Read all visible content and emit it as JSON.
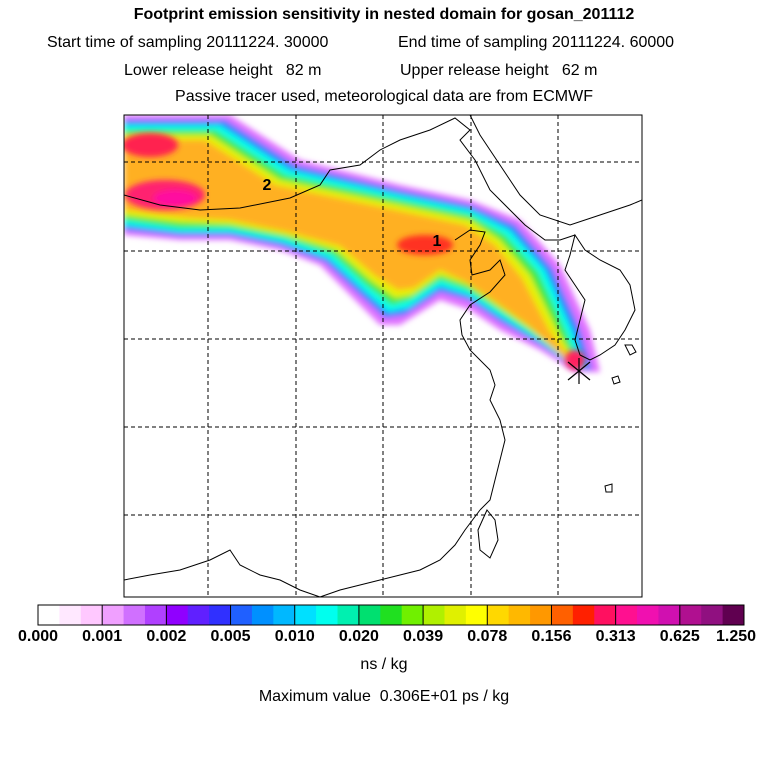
{
  "header": {
    "title": "Footprint emission sensitivity in nested domain for gosan_201112",
    "start_label": "Start time of sampling",
    "start_value": "20111224. 30000",
    "end_label": "End time of sampling",
    "end_value": "20111224. 60000",
    "lower_label": "Lower release height",
    "lower_value": "82 m",
    "upper_label": "Upper release height",
    "upper_value": "62 m",
    "tracer_note": "Passive tracer used, meteorological data are from ECMWF"
  },
  "map": {
    "markers": [
      {
        "label": "1"
      },
      {
        "label": "2"
      }
    ],
    "release_site": "gosan"
  },
  "colorbar": {
    "ticks": [
      "0.000",
      "0.001",
      "0.002",
      "0.005",
      "0.010",
      "0.020",
      "0.039",
      "0.078",
      "0.156",
      "0.313",
      "0.625",
      "1.250"
    ],
    "colors": [
      "#ffffff",
      "#ffe8ff",
      "#ffc8ff",
      "#f0a0ff",
      "#d070ff",
      "#b040ff",
      "#9000ff",
      "#6020ff",
      "#3030ff",
      "#2060ff",
      "#0090ff",
      "#00b8ff",
      "#00e0ff",
      "#00ffee",
      "#00f0b0",
      "#00e070",
      "#20e020",
      "#70f000",
      "#b0f000",
      "#e0f000",
      "#ffff00",
      "#ffd800",
      "#ffb800",
      "#ff9800",
      "#ff6000",
      "#ff2000",
      "#ff1060",
      "#ff1090",
      "#f010b0",
      "#d010b0",
      "#b01090",
      "#901080",
      "#600050"
    ],
    "units": "ns / kg"
  },
  "footer": {
    "max_label": "Maximum value",
    "max_value": "0.306E+01 ps / kg"
  }
}
